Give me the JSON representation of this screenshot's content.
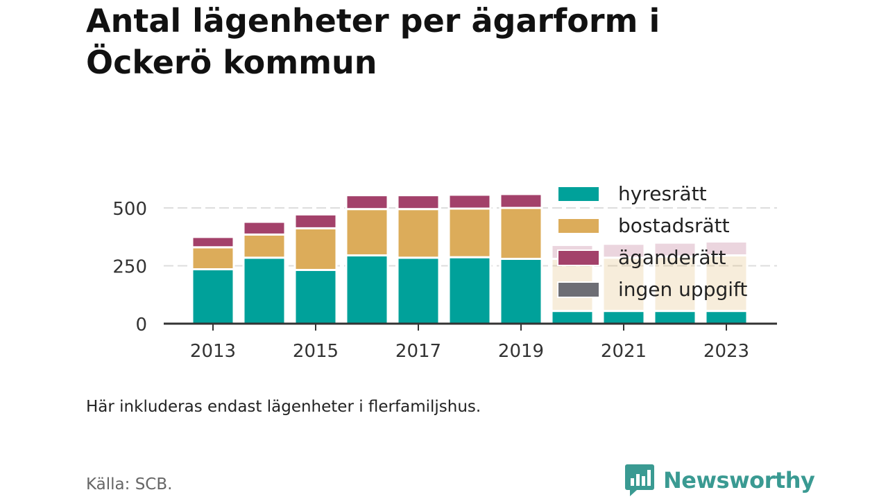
{
  "title": "Antal lägenheter per ägarform i Öckerö kommun",
  "note": "Här inkluderas endast lägenheter i flerfamiljshus.",
  "source": "Källa: SCB.",
  "brand": {
    "name": "Newsworthy"
  },
  "colors": {
    "hyresratt": "#00a19a",
    "bostadsratt": "#dcac5a",
    "aganderatt": "#a3416a",
    "ingen_uppgift": "#6d6e75",
    "grid": "#dddddd",
    "axis": "#333333",
    "brand": "#3a9a92"
  },
  "chart_data": {
    "type": "bar",
    "stacked": true,
    "x": [
      2013,
      2014,
      2015,
      2016,
      2017,
      2018,
      2019,
      2020,
      2021,
      2022,
      2023
    ],
    "x_tick_labels": [
      "2013",
      "2015",
      "2017",
      "2019",
      "2021",
      "2023"
    ],
    "x_tick_values": [
      2013,
      2015,
      2017,
      2019,
      2021,
      2023
    ],
    "y_ticks": [
      0,
      250,
      500
    ],
    "y_tick_labels": [
      "0",
      "250",
      "500"
    ],
    "ylim": [
      0,
      600
    ],
    "grid": true,
    "legend_position": "top-right",
    "faded_from": 2020,
    "series": [
      {
        "name": "hyresrätt",
        "key": "hyresratt",
        "values": [
          235,
          285,
          232,
          295,
          285,
          287,
          280,
          55,
          55,
          55,
          55
        ]
      },
      {
        "name": "bostadsrätt",
        "key": "bostadsratt",
        "values": [
          95,
          100,
          180,
          200,
          210,
          210,
          220,
          225,
          230,
          235,
          240
        ]
      },
      {
        "name": "äganderätt",
        "key": "aganderatt",
        "values": [
          45,
          55,
          60,
          60,
          60,
          60,
          60,
          60,
          60,
          60,
          60
        ]
      },
      {
        "name": "ingen uppgift",
        "key": "ingen_uppgift",
        "values": [
          5,
          0,
          0,
          0,
          0,
          0,
          0,
          0,
          0,
          0,
          0
        ]
      }
    ]
  }
}
